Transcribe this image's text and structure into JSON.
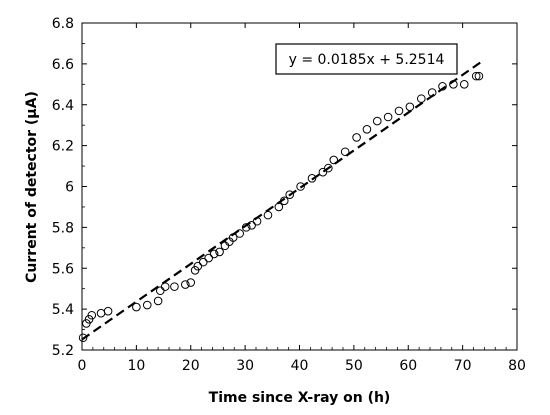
{
  "chart_data": {
    "type": "scatter",
    "title": "",
    "xlabel": "Time since X-ray on (h)",
    "ylabel": "Current of detector (μA)",
    "xlim": [
      0,
      80
    ],
    "ylim": [
      5.2,
      6.8
    ],
    "xticks": [
      0,
      10,
      20,
      30,
      40,
      50,
      60,
      70,
      80
    ],
    "yticks": [
      5.2,
      5.4,
      5.6,
      5.8,
      6.0,
      6.2,
      6.4,
      6.6,
      6.8
    ],
    "ytick_labels": [
      "5.2",
      "5.4",
      "5.6",
      "5.8",
      "6",
      "6.2",
      "6.4",
      "6.6",
      "6.8"
    ],
    "grid": false,
    "series": [
      {
        "marker": "open-circle",
        "x": [
          0.2,
          0.8,
          1.3,
          1.8,
          3.5,
          4.8,
          10.0,
          12.0,
          14.0,
          14.4,
          15.3,
          17.0,
          19.0,
          20.0,
          20.8,
          21.3,
          22.3,
          23.3,
          24.3,
          25.3,
          26.3,
          27.1,
          27.8,
          29.0,
          30.2,
          31.2,
          32.2,
          34.2,
          36.2,
          37.2,
          38.2,
          40.2,
          42.3,
          44.3,
          45.3,
          46.3,
          48.4,
          50.5,
          52.4,
          54.3,
          56.3,
          58.3,
          60.3,
          62.4,
          64.4,
          66.3,
          68.3,
          70.3,
          72.5,
          73.0
        ],
        "y": [
          5.26,
          5.33,
          5.35,
          5.37,
          5.38,
          5.39,
          5.41,
          5.42,
          5.44,
          5.49,
          5.51,
          5.51,
          5.52,
          5.53,
          5.59,
          5.61,
          5.63,
          5.65,
          5.67,
          5.68,
          5.71,
          5.73,
          5.75,
          5.77,
          5.8,
          5.81,
          5.83,
          5.86,
          5.9,
          5.93,
          5.96,
          6.0,
          6.04,
          6.07,
          6.09,
          6.13,
          6.17,
          6.24,
          6.28,
          6.32,
          6.34,
          6.37,
          6.39,
          6.43,
          6.46,
          6.49,
          6.5,
          6.5,
          6.54,
          6.54
        ]
      }
    ],
    "fit": {
      "slope": 0.0185,
      "intercept": 5.2514,
      "x_range": [
        0,
        73.5
      ],
      "style": "dashed",
      "equation_label": "y = 0.0185x + 5.2514"
    },
    "legend": "top-right"
  }
}
